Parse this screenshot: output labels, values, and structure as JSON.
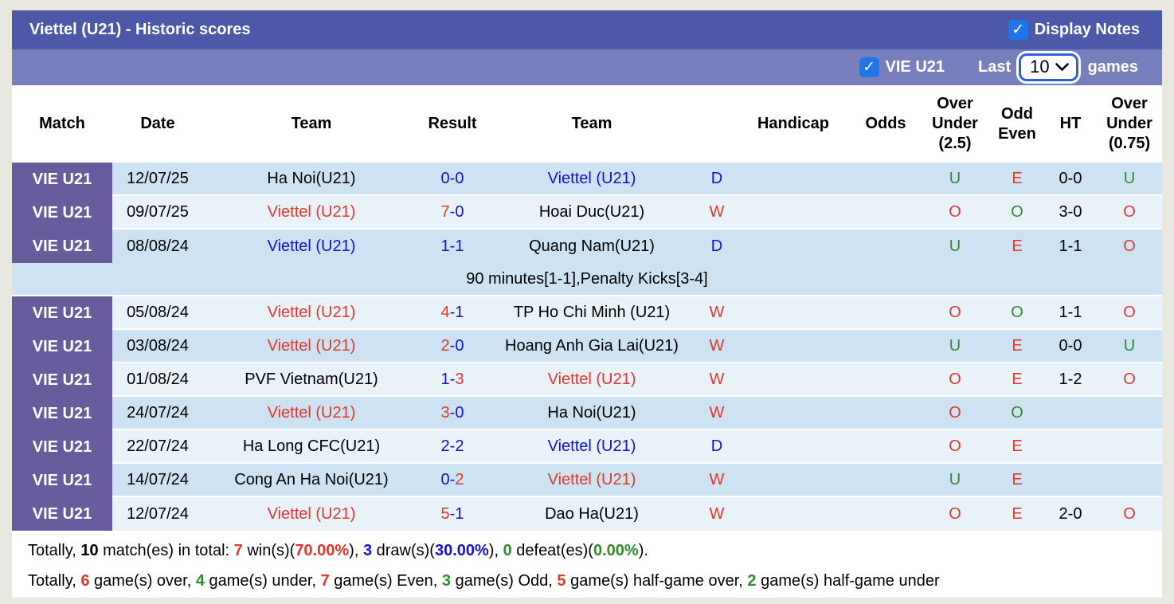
{
  "colors": {
    "title_bar": "#4C59A8",
    "filter_bar": "#7780BC",
    "match_label_purple": "#695C9D",
    "row_dark": "#CDE2F2",
    "row_light": "#E9F1F9",
    "checkbox_blue": "#2175E8",
    "select_border": "#2B62D9",
    "text_blue": "#1212CC",
    "text_red": "#DF372C",
    "text_green": "#2E8B2E",
    "page_background": "#E8E7E0"
  },
  "header": {
    "title": "Viettel (U21) - Historic scores",
    "display_notes_label": "Display Notes",
    "display_notes_checked": true
  },
  "filter_bar": {
    "team_checkbox_checked": true,
    "team_label": "VIE U21",
    "last_label": "Last",
    "games_count": "10",
    "games_label": "games"
  },
  "table": {
    "columns": [
      {
        "id": "match",
        "lines": [
          "Match"
        ]
      },
      {
        "id": "date",
        "lines": [
          "Date"
        ]
      },
      {
        "id": "team1",
        "lines": [
          "Team"
        ]
      },
      {
        "id": "result",
        "lines": [
          "Result"
        ]
      },
      {
        "id": "team2",
        "lines": [
          "Team"
        ]
      },
      {
        "id": "wdl",
        "lines": []
      },
      {
        "id": "handicap",
        "lines": [
          "Handicap"
        ]
      },
      {
        "id": "odds",
        "lines": [
          "Odds"
        ]
      },
      {
        "id": "ou25",
        "lines": [
          "Over",
          "Under",
          "(2.5)"
        ]
      },
      {
        "id": "oddeven",
        "lines": [
          "Odd",
          "Even"
        ]
      },
      {
        "id": "ht",
        "lines": [
          "HT"
        ]
      },
      {
        "id": "ou075",
        "lines": [
          "Over",
          "Under",
          "(0.75)"
        ]
      }
    ],
    "rows": [
      {
        "type": "match",
        "bg": "dark",
        "label": "VIE U21",
        "date": "12/07/25",
        "team1": {
          "text": "Ha Noi(U21)",
          "color": "black"
        },
        "result": {
          "home": "0",
          "dash": "-",
          "away": "0",
          "home_color": "blue",
          "dash_color": "blue",
          "away_color": "blue"
        },
        "team2": {
          "text": "Viettel (U21)",
          "color": "blue"
        },
        "wdl": {
          "text": "D",
          "color": "blue"
        },
        "handicap": "",
        "odds": "",
        "ou25": {
          "text": "U",
          "color": "green"
        },
        "odd_even": {
          "text": "E",
          "color": "red"
        },
        "ht": "0-0",
        "ou075": {
          "text": "U",
          "color": "green"
        }
      },
      {
        "type": "match",
        "bg": "light",
        "label": "VIE U21",
        "date": "09/07/25",
        "team1": {
          "text": "Viettel (U21)",
          "color": "red"
        },
        "result": {
          "home": "7",
          "dash": "-",
          "away": "0",
          "home_color": "red",
          "dash_color": "blue",
          "away_color": "blue"
        },
        "team2": {
          "text": "Hoai Duc(U21)",
          "color": "black"
        },
        "wdl": {
          "text": "W",
          "color": "red"
        },
        "handicap": "",
        "odds": "",
        "ou25": {
          "text": "O",
          "color": "red"
        },
        "odd_even": {
          "text": "O",
          "color": "green"
        },
        "ht": "3-0",
        "ou075": {
          "text": "O",
          "color": "red"
        }
      },
      {
        "type": "match",
        "bg": "dark",
        "no_sep_below": true,
        "label": "VIE U21",
        "date": "08/08/24",
        "team1": {
          "text": "Viettel (U21)",
          "color": "blue"
        },
        "result": {
          "home": "1",
          "dash": "-",
          "away": "1",
          "home_color": "blue",
          "dash_color": "blue",
          "away_color": "blue"
        },
        "team2": {
          "text": "Quang Nam(U21)",
          "color": "black"
        },
        "wdl": {
          "text": "D",
          "color": "blue"
        },
        "handicap": "",
        "odds": "",
        "ou25": {
          "text": "U",
          "color": "green"
        },
        "odd_even": {
          "text": "E",
          "color": "red"
        },
        "ht": "1-1",
        "ou075": {
          "text": "O",
          "color": "red"
        }
      },
      {
        "type": "note",
        "bg": "dark",
        "text": "90 minutes[1-1],Penalty Kicks[3-4]"
      },
      {
        "type": "match",
        "bg": "light",
        "label": "VIE U21",
        "date": "05/08/24",
        "team1": {
          "text": "Viettel (U21)",
          "color": "red"
        },
        "result": {
          "home": "4",
          "dash": "-",
          "away": "1",
          "home_color": "red",
          "dash_color": "blue",
          "away_color": "blue"
        },
        "team2": {
          "text": "TP Ho Chi Minh (U21)",
          "color": "black"
        },
        "wdl": {
          "text": "W",
          "color": "red"
        },
        "handicap": "",
        "odds": "",
        "ou25": {
          "text": "O",
          "color": "red"
        },
        "odd_even": {
          "text": "O",
          "color": "green"
        },
        "ht": "1-1",
        "ou075": {
          "text": "O",
          "color": "red"
        }
      },
      {
        "type": "match",
        "bg": "dark",
        "label": "VIE U21",
        "date": "03/08/24",
        "team1": {
          "text": "Viettel (U21)",
          "color": "red"
        },
        "result": {
          "home": "2",
          "dash": "-",
          "away": "0",
          "home_color": "red",
          "dash_color": "blue",
          "away_color": "blue"
        },
        "team2": {
          "text": "Hoang Anh Gia Lai(U21)",
          "color": "black"
        },
        "wdl": {
          "text": "W",
          "color": "red"
        },
        "handicap": "",
        "odds": "",
        "ou25": {
          "text": "U",
          "color": "green"
        },
        "odd_even": {
          "text": "E",
          "color": "red"
        },
        "ht": "0-0",
        "ou075": {
          "text": "U",
          "color": "green"
        }
      },
      {
        "type": "match",
        "bg": "light",
        "label": "VIE U21",
        "date": "01/08/24",
        "team1": {
          "text": "PVF Vietnam(U21)",
          "color": "black"
        },
        "result": {
          "home": "1",
          "dash": "-",
          "away": "3",
          "home_color": "blue",
          "dash_color": "blue",
          "away_color": "red"
        },
        "team2": {
          "text": "Viettel (U21)",
          "color": "red"
        },
        "wdl": {
          "text": "W",
          "color": "red"
        },
        "handicap": "",
        "odds": "",
        "ou25": {
          "text": "O",
          "color": "red"
        },
        "odd_even": {
          "text": "E",
          "color": "red"
        },
        "ht": "1-2",
        "ou075": {
          "text": "O",
          "color": "red"
        }
      },
      {
        "type": "match",
        "bg": "dark",
        "label": "VIE U21",
        "date": "24/07/24",
        "team1": {
          "text": "Viettel (U21)",
          "color": "red"
        },
        "result": {
          "home": "3",
          "dash": "-",
          "away": "0",
          "home_color": "red",
          "dash_color": "blue",
          "away_color": "blue"
        },
        "team2": {
          "text": "Ha Noi(U21)",
          "color": "black"
        },
        "wdl": {
          "text": "W",
          "color": "red"
        },
        "handicap": "",
        "odds": "",
        "ou25": {
          "text": "O",
          "color": "red"
        },
        "odd_even": {
          "text": "O",
          "color": "green"
        },
        "ht": "",
        "ou075": {
          "text": "",
          "color": "black"
        }
      },
      {
        "type": "match",
        "bg": "light",
        "label": "VIE U21",
        "date": "22/07/24",
        "team1": {
          "text": "Ha Long CFC(U21)",
          "color": "black"
        },
        "result": {
          "home": "2",
          "dash": "-",
          "away": "2",
          "home_color": "blue",
          "dash_color": "blue",
          "away_color": "blue"
        },
        "team2": {
          "text": "Viettel (U21)",
          "color": "blue"
        },
        "wdl": {
          "text": "D",
          "color": "blue"
        },
        "handicap": "",
        "odds": "",
        "ou25": {
          "text": "O",
          "color": "red"
        },
        "odd_even": {
          "text": "E",
          "color": "red"
        },
        "ht": "",
        "ou075": {
          "text": "",
          "color": "black"
        }
      },
      {
        "type": "match",
        "bg": "dark",
        "label": "VIE U21",
        "date": "14/07/24",
        "team1": {
          "text": "Cong An Ha Noi(U21)",
          "color": "black"
        },
        "result": {
          "home": "0",
          "dash": "-",
          "away": "2",
          "home_color": "blue",
          "dash_color": "blue",
          "away_color": "red"
        },
        "team2": {
          "text": "Viettel (U21)",
          "color": "red"
        },
        "wdl": {
          "text": "W",
          "color": "red"
        },
        "handicap": "",
        "odds": "",
        "ou25": {
          "text": "U",
          "color": "green"
        },
        "odd_even": {
          "text": "E",
          "color": "red"
        },
        "ht": "",
        "ou075": {
          "text": "",
          "color": "black"
        }
      },
      {
        "type": "match",
        "bg": "light",
        "label": "VIE U21",
        "date": "12/07/24",
        "team1": {
          "text": "Viettel (U21)",
          "color": "red"
        },
        "result": {
          "home": "5",
          "dash": "-",
          "away": "1",
          "home_color": "red",
          "dash_color": "blue",
          "away_color": "blue"
        },
        "team2": {
          "text": "Dao Ha(U21)",
          "color": "black"
        },
        "wdl": {
          "text": "W",
          "color": "red"
        },
        "handicap": "",
        "odds": "",
        "ou25": {
          "text": "O",
          "color": "red"
        },
        "odd_even": {
          "text": "E",
          "color": "red"
        },
        "ht": "2-0",
        "ou075": {
          "text": "O",
          "color": "red"
        }
      }
    ]
  },
  "summary": {
    "lines": [
      [
        {
          "t": "Totally, ",
          "c": "black",
          "b": false
        },
        {
          "t": "10",
          "c": "black",
          "b": true
        },
        {
          "t": " match(es) in total: ",
          "c": "black",
          "b": false
        },
        {
          "t": "7",
          "c": "red",
          "b": true
        },
        {
          "t": " win(s)(",
          "c": "black",
          "b": false
        },
        {
          "t": "70.00%",
          "c": "red",
          "b": true
        },
        {
          "t": "), ",
          "c": "black",
          "b": false
        },
        {
          "t": "3",
          "c": "blue",
          "b": true
        },
        {
          "t": " draw(s)(",
          "c": "black",
          "b": false
        },
        {
          "t": "30.00%",
          "c": "blue",
          "b": true
        },
        {
          "t": "), ",
          "c": "black",
          "b": false
        },
        {
          "t": "0",
          "c": "green",
          "b": true
        },
        {
          "t": " defeat(es)(",
          "c": "black",
          "b": false
        },
        {
          "t": "0.00%",
          "c": "green",
          "b": true
        },
        {
          "t": ").",
          "c": "black",
          "b": false
        }
      ],
      [
        {
          "t": "Totally, ",
          "c": "black",
          "b": false
        },
        {
          "t": "6",
          "c": "red",
          "b": true
        },
        {
          "t": " game(s) over, ",
          "c": "black",
          "b": false
        },
        {
          "t": "4",
          "c": "green",
          "b": true
        },
        {
          "t": " game(s) under, ",
          "c": "black",
          "b": false
        },
        {
          "t": "7",
          "c": "red",
          "b": true
        },
        {
          "t": " game(s) Even, ",
          "c": "black",
          "b": false
        },
        {
          "t": "3",
          "c": "green",
          "b": true
        },
        {
          "t": " game(s) Odd, ",
          "c": "black",
          "b": false
        },
        {
          "t": "5",
          "c": "red",
          "b": true
        },
        {
          "t": " game(s) half-game over, ",
          "c": "black",
          "b": false
        },
        {
          "t": "2",
          "c": "green",
          "b": true
        },
        {
          "t": " game(s) half-game under",
          "c": "black",
          "b": false
        }
      ]
    ]
  }
}
